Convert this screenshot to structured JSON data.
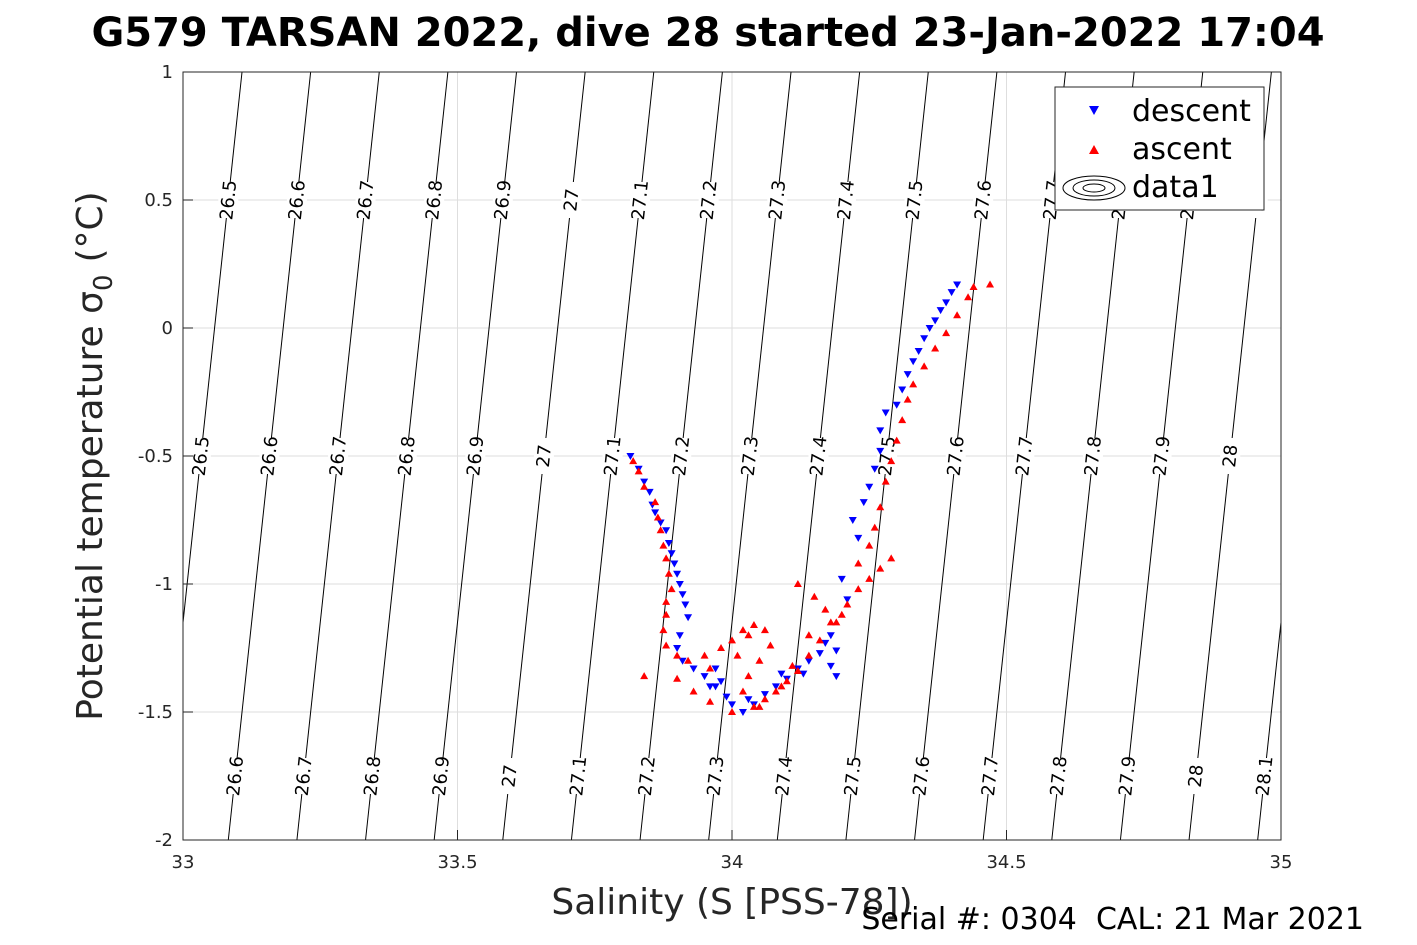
{
  "chart_data": {
    "type": "scatter",
    "title": "G579 TARSAN 2022, dive 28 started 23-Jan-2022 17:04",
    "xlabel": "Salinity (S [PSS-78])",
    "ylabel": "Potential temperature σ",
    "ylabel_sub": "0",
    "ylabel_unit": "(°C)",
    "xlim": [
      33,
      35
    ],
    "ylim": [
      -2,
      1
    ],
    "xticks": [
      "33",
      "33.5",
      "34",
      "34.5",
      "35"
    ],
    "yticks": [
      "-2",
      "-1.5",
      "-1",
      "-0.5",
      "0",
      "0.5",
      "1"
    ],
    "grid": true,
    "legend_position": "top-right",
    "legend": [
      "descent",
      "ascent",
      "data1"
    ],
    "footer": "Serial #: 0304  CAL: 21 Mar 2021",
    "isopycnals": {
      "values": [
        26.5,
        26.6,
        26.7,
        26.8,
        26.9,
        27,
        27.1,
        27.2,
        27.3,
        27.4,
        27.5,
        27.6,
        27.7,
        27.8,
        27.9,
        28,
        28.1
      ],
      "labels": [
        "26.5",
        "26.6",
        "26.7",
        "26.8",
        "26.9",
        "27",
        "27.1",
        "27.2",
        "27.3",
        "27.4",
        "27.5",
        "27.6",
        "27.7",
        "27.8",
        "27.9",
        "28",
        "28.1"
      ],
      "contour_color": "#000000"
    },
    "series": [
      {
        "name": "descent",
        "marker": "triangle-down",
        "color": "#0000ff",
        "points": [
          [
            33.815,
            -0.5
          ],
          [
            33.83,
            -0.55
          ],
          [
            33.84,
            -0.6
          ],
          [
            33.85,
            -0.64
          ],
          [
            33.855,
            -0.69
          ],
          [
            33.86,
            -0.72
          ],
          [
            33.87,
            -0.76
          ],
          [
            33.88,
            -0.79
          ],
          [
            33.885,
            -0.84
          ],
          [
            33.89,
            -0.88
          ],
          [
            33.895,
            -0.92
          ],
          [
            33.9,
            -0.96
          ],
          [
            33.905,
            -1.0
          ],
          [
            33.91,
            -1.04
          ],
          [
            33.915,
            -1.08
          ],
          [
            33.92,
            -1.13
          ],
          [
            33.905,
            -1.2
          ],
          [
            33.9,
            -1.25
          ],
          [
            33.91,
            -1.3
          ],
          [
            33.93,
            -1.33
          ],
          [
            33.95,
            -1.36
          ],
          [
            33.97,
            -1.4
          ],
          [
            33.99,
            -1.44
          ],
          [
            34.0,
            -1.47
          ],
          [
            34.02,
            -1.5
          ],
          [
            34.04,
            -1.47
          ],
          [
            34.06,
            -1.43
          ],
          [
            34.08,
            -1.4
          ],
          [
            34.1,
            -1.37
          ],
          [
            34.12,
            -1.33
          ],
          [
            34.14,
            -1.3
          ],
          [
            34.16,
            -1.27
          ],
          [
            34.17,
            -1.23
          ],
          [
            34.18,
            -1.2
          ],
          [
            34.19,
            -1.26
          ],
          [
            34.18,
            -1.32
          ],
          [
            34.19,
            -1.36
          ],
          [
            34.21,
            -1.06
          ],
          [
            34.2,
            -0.98
          ],
          [
            34.23,
            -0.82
          ],
          [
            34.22,
            -0.75
          ],
          [
            34.24,
            -0.68
          ],
          [
            34.25,
            -0.62
          ],
          [
            34.26,
            -0.55
          ],
          [
            34.27,
            -0.48
          ],
          [
            34.27,
            -0.4
          ],
          [
            34.28,
            -0.33
          ],
          [
            34.3,
            -0.3
          ],
          [
            34.31,
            -0.24
          ],
          [
            34.32,
            -0.18
          ],
          [
            34.33,
            -0.13
          ],
          [
            34.34,
            -0.09
          ],
          [
            34.35,
            -0.04
          ],
          [
            34.36,
            0.0
          ],
          [
            34.37,
            0.03
          ],
          [
            34.38,
            0.07
          ],
          [
            34.39,
            0.1
          ],
          [
            34.4,
            0.14
          ],
          [
            34.41,
            0.17
          ],
          [
            33.97,
            -1.33
          ],
          [
            33.96,
            -1.4
          ],
          [
            33.98,
            -1.38
          ],
          [
            34.03,
            -1.45
          ],
          [
            34.09,
            -1.35
          ],
          [
            34.13,
            -1.35
          ]
        ]
      },
      {
        "name": "ascent",
        "marker": "triangle-up",
        "color": "#ff0000",
        "points": [
          [
            33.82,
            -0.52
          ],
          [
            33.83,
            -0.56
          ],
          [
            33.84,
            -0.62
          ],
          [
            33.86,
            -0.68
          ],
          [
            33.865,
            -0.74
          ],
          [
            33.87,
            -0.79
          ],
          [
            33.875,
            -0.85
          ],
          [
            33.88,
            -0.9
          ],
          [
            33.885,
            -0.96
          ],
          [
            33.89,
            -1.02
          ],
          [
            33.88,
            -1.07
          ],
          [
            33.88,
            -1.12
          ],
          [
            33.875,
            -1.18
          ],
          [
            33.88,
            -1.24
          ],
          [
            33.9,
            -1.28
          ],
          [
            33.92,
            -1.3
          ],
          [
            33.95,
            -1.28
          ],
          [
            33.98,
            -1.25
          ],
          [
            34.0,
            -1.22
          ],
          [
            34.02,
            -1.18
          ],
          [
            34.04,
            -1.16
          ],
          [
            34.06,
            -1.18
          ],
          [
            34.07,
            -1.24
          ],
          [
            34.05,
            -1.3
          ],
          [
            34.03,
            -1.36
          ],
          [
            34.02,
            -1.42
          ],
          [
            34.04,
            -1.48
          ],
          [
            34.06,
            -1.45
          ],
          [
            34.08,
            -1.42
          ],
          [
            34.1,
            -1.38
          ],
          [
            34.12,
            -1.34
          ],
          [
            34.14,
            -1.28
          ],
          [
            34.16,
            -1.22
          ],
          [
            34.18,
            -1.15
          ],
          [
            34.2,
            -1.12
          ],
          [
            34.21,
            -1.08
          ],
          [
            34.23,
            -1.02
          ],
          [
            34.25,
            -0.98
          ],
          [
            34.27,
            -0.94
          ],
          [
            34.29,
            -0.9
          ],
          [
            34.25,
            -0.85
          ],
          [
            34.23,
            -0.92
          ],
          [
            34.26,
            -0.78
          ],
          [
            34.27,
            -0.7
          ],
          [
            34.28,
            -0.6
          ],
          [
            34.29,
            -0.52
          ],
          [
            34.3,
            -0.44
          ],
          [
            34.31,
            -0.36
          ],
          [
            34.32,
            -0.28
          ],
          [
            34.33,
            -0.22
          ],
          [
            34.35,
            -0.15
          ],
          [
            34.37,
            -0.08
          ],
          [
            34.39,
            -0.02
          ],
          [
            34.41,
            0.05
          ],
          [
            34.43,
            0.12
          ],
          [
            34.44,
            0.16
          ],
          [
            34.47,
            0.17
          ],
          [
            33.84,
            -1.36
          ],
          [
            33.9,
            -1.37
          ],
          [
            33.93,
            -1.42
          ],
          [
            33.96,
            -1.46
          ],
          [
            34.0,
            -1.5
          ],
          [
            34.05,
            -1.48
          ],
          [
            34.09,
            -1.4
          ],
          [
            34.11,
            -1.32
          ],
          [
            34.14,
            -1.2
          ],
          [
            34.17,
            -1.1
          ],
          [
            34.19,
            -1.15
          ],
          [
            34.15,
            -1.05
          ],
          [
            34.12,
            -1.0
          ],
          [
            34.03,
            -1.2
          ],
          [
            34.01,
            -1.28
          ],
          [
            33.96,
            -1.33
          ]
        ]
      }
    ]
  }
}
